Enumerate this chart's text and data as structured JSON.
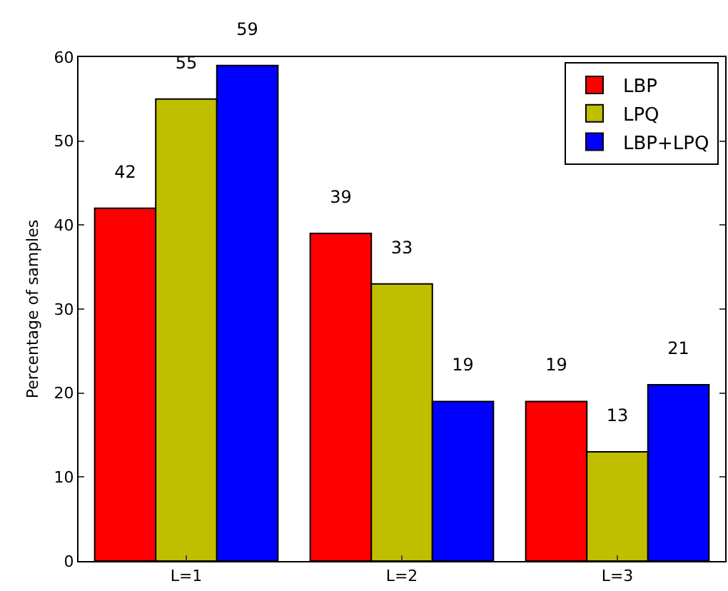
{
  "chart_data": {
    "type": "bar",
    "ylabel": "Percentage of samples",
    "categories": [
      "L=1",
      "L=2",
      "L=3"
    ],
    "series": [
      {
        "name": "LBP",
        "color": "#ff0000",
        "values": [
          42,
          39,
          19
        ]
      },
      {
        "name": "LPQ",
        "color": "#bfbf00",
        "values": [
          55,
          33,
          13
        ]
      },
      {
        "name": "LBP+LPQ",
        "color": "#0000ff",
        "values": [
          59,
          19,
          21
        ]
      }
    ],
    "ylim": [
      0,
      60
    ],
    "yticks": [
      0,
      10,
      20,
      30,
      40,
      50,
      60
    ],
    "grid": false,
    "legend": "top right",
    "data_labels": true
  }
}
